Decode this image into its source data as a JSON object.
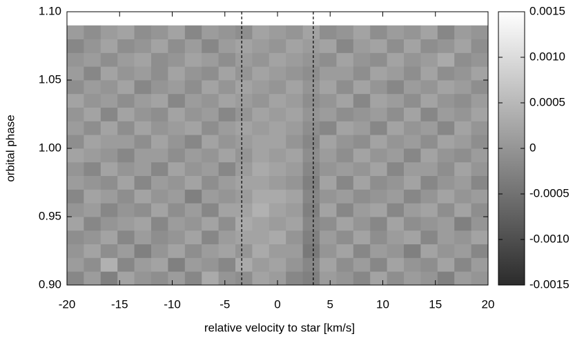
{
  "chart_data": {
    "type": "heatmap",
    "xlabel": "relative velocity to star [km/s]",
    "ylabel": "orbital phase",
    "xlim": [
      -20,
      20
    ],
    "xticks": [
      -20,
      -15,
      -10,
      -5,
      0,
      5,
      10,
      15,
      20
    ],
    "ylim": [
      0.9,
      1.1
    ],
    "yticks": [
      {
        "value": 0.9,
        "label": "0.90"
      },
      0.95,
      {
        "value": 1.0,
        "label": "1.00"
      },
      1.05,
      {
        "value": 1.1,
        "label": "1.10"
      }
    ],
    "zlim": [
      -0.0015,
      0.0015
    ],
    "zticks": [
      -0.0015,
      {
        "value": -0.001,
        "label": "-0.0010"
      },
      -0.0005,
      0,
      0.0005,
      {
        "value": 0.001,
        "label": "0.0010"
      },
      0.0015
    ],
    "colormap": [
      "#2b2b2b",
      "#ffffff"
    ],
    "vlines": [
      -3.4,
      3.4
    ],
    "xbins": [
      -20,
      -18.4,
      -16.8,
      -15.2,
      -13.6,
      -12,
      -10.4,
      -8.8,
      -7.2,
      -5.6,
      -4,
      -2.4,
      -0.8,
      0.8,
      2.4,
      4,
      5.6,
      7.2,
      8.8,
      10.4,
      12,
      13.6,
      15.2,
      16.8,
      18.4,
      20
    ],
    "ybins": [
      0.9,
      0.91,
      0.92,
      0.93,
      0.94,
      0.95,
      0.96,
      0.97,
      0.98,
      0.99,
      1.0,
      1.01,
      1.02,
      1.03,
      1.04,
      1.05,
      1.06,
      1.07,
      1.08,
      1.09
    ],
    "z": [
      [
        -0.0002,
        0.0001,
        -0.0003,
        0.0002,
        0,
        -0.0001,
        0.0001,
        -0.0002,
        0.0003,
        0,
        -0.0001,
        0.0002,
        0.0001,
        -0.0002,
        -0.0003,
        0.0001,
        0,
        -0.0002,
        0.0002,
        -0.0001,
        0.0001,
        0,
        -0.0003,
        0.0001,
        0
      ],
      [
        0.0001,
        -0.0001,
        0.0004,
        -0.0002,
        0.0001,
        0.0002,
        -0.0003,
        0.0001,
        0,
        -0.0002,
        0.0003,
        0.0001,
        0.0002,
        0,
        -0.0002,
        0.0002,
        -0.0001,
        0.0001,
        -0.0002,
        0.0002,
        0,
        -0.0001,
        0.0002,
        -0.0002,
        0.0001
      ],
      [
        0,
        0.0002,
        -0.0001,
        0.0001,
        -0.0003,
        0,
        0.0002,
        -0.0001,
        0.0001,
        0.0002,
        0,
        0.0003,
        0.0001,
        0.0001,
        -0.0004,
        0,
        0.0002,
        -0.0002,
        0.0001,
        0,
        -0.0003,
        0.0002,
        0,
        0.0001,
        -0.0002
      ],
      [
        -0.0001,
        0,
        0.0002,
        -0.0002,
        0.0001,
        -0.0001,
        0,
        0.0002,
        -0.0002,
        0.0001,
        0.0002,
        0.0002,
        0.0003,
        0,
        -0.0003,
        0.0001,
        -0.0001,
        0.0002,
        -0.0001,
        0.0001,
        0.0002,
        -0.0002,
        0.0001,
        0,
        0.0002
      ],
      [
        0.0002,
        -0.0002,
        0,
        0.0001,
        0.0002,
        -0.0002,
        0.0001,
        0,
        0.0002,
        -0.0001,
        0.0003,
        0.0002,
        0.0001,
        0.0002,
        -0.0002,
        -0.0001,
        0.0002,
        0,
        -0.0002,
        0.0002,
        -0.0001,
        0,
        0.0001,
        -0.0003,
        0
      ],
      [
        0,
        0.0001,
        -0.0002,
        0,
        -0.0001,
        0.0002,
        -0.0001,
        0.0001,
        -0.0002,
        0.0002,
        0.0002,
        0.0004,
        0.0002,
        0.0001,
        -0.0003,
        0.0002,
        -0.0002,
        0.0001,
        0.0002,
        -0.0002,
        0.0001,
        0.0002,
        -0.0001,
        0.0002,
        -0.0001
      ],
      [
        -0.0002,
        0.0002,
        0.0001,
        -0.0001,
        0.0002,
        0,
        0.0001,
        -0.0003,
        0.0001,
        0,
        0.0001,
        0.0003,
        0.0003,
        0.0002,
        -0.0002,
        0,
        0.0001,
        -0.0001,
        0,
        0.0001,
        -0.0002,
        0,
        0.0002,
        0,
        0.0001
      ],
      [
        0.0001,
        0,
        -0.0001,
        0.0002,
        -0.0002,
        0.0001,
        0,
        0.0002,
        -0.0001,
        0.0001,
        0.0002,
        0.0002,
        0.0001,
        0,
        -0.0003,
        0.0002,
        -0.0002,
        0.0002,
        -0.0001,
        0,
        0.0002,
        -0.0002,
        0,
        0.0001,
        -0.0002
      ],
      [
        0,
        -0.0002,
        0.0002,
        0,
        0.0001,
        -0.0002,
        0.0002,
        0,
        0.0001,
        -0.0002,
        0.0001,
        0.0003,
        0.0002,
        0.0001,
        -0.0002,
        0,
        0.0001,
        0,
        0.0002,
        -0.0002,
        0.0001,
        0.0001,
        -0.0001,
        0.0002,
        0
      ],
      [
        0.0002,
        0.0001,
        0,
        -0.0002,
        0.0001,
        0.0001,
        -0.0001,
        0.0001,
        0,
        0.0002,
        0,
        0.0002,
        0.0001,
        0.0002,
        -0.0001,
        0.0001,
        -0.0001,
        0.0002,
        0,
        0.0001,
        -0.0002,
        0.0002,
        0,
        -0.0001,
        0.0001
      ],
      [
        -0.0001,
        0.0002,
        0.0001,
        0.0001,
        -0.0001,
        0.0002,
        0,
        -0.0002,
        0.0002,
        0,
        0.0001,
        0.0002,
        0.0002,
        0,
        -0.0002,
        0.0002,
        0,
        -0.0001,
        0.0002,
        0,
        0.0001,
        -0.0001,
        0.0002,
        0.0001,
        -0.0001
      ],
      [
        0.0001,
        -0.0001,
        0.0002,
        -0.0001,
        0.0002,
        0,
        0.0001,
        0.0002,
        -0.0001,
        0.0001,
        0.0002,
        0.0001,
        0.0002,
        0.0001,
        -0.0001,
        -0.0002,
        0.0002,
        0.0001,
        -0.0002,
        0.0002,
        0,
        0.0001,
        -0.0002,
        0.0002,
        0
      ],
      [
        0,
        0.0002,
        -0.0002,
        0.0002,
        0,
        -0.0001,
        0.0002,
        0,
        0.0001,
        -0.0002,
        0,
        0.0002,
        0.0001,
        0.0002,
        0,
        0.0001,
        -0.0001,
        0,
        0.0001,
        -0.0001,
        0.0002,
        -0.0002,
        0.0001,
        0,
        0.0002
      ],
      [
        0.0002,
        0,
        0.0001,
        -0.0001,
        0.0001,
        0.0002,
        -0.0002,
        0.0001,
        0,
        0.0002,
        0.0001,
        0,
        0.0002,
        0.0001,
        -0.0001,
        0,
        0.0002,
        -0.0002,
        0.0002,
        0.0001,
        -0.0001,
        0.0002,
        0,
        -0.0001,
        0.0001
      ],
      [
        -0.0001,
        0.0001,
        0,
        0.0002,
        -0.0002,
        0,
        0.0001,
        -0.0001,
        0.0002,
        0,
        0.0002,
        0.0001,
        0,
        0.0002,
        0,
        0.0002,
        -0.0001,
        0.0002,
        0,
        -0.0002,
        0.0001,
        0,
        0.0002,
        0.0001,
        -0.0001
      ],
      [
        0.0001,
        -0.0002,
        0.0002,
        0,
        0.0001,
        -0.0001,
        0.0002,
        0,
        -0.0001,
        0.0002,
        0,
        0.0002,
        0.0001,
        0,
        -0.0001,
        0.0001,
        0.0001,
        -0.0001,
        0.0002,
        0.0001,
        -0.0001,
        0.0002,
        -0.0001,
        0,
        0.0002
      ],
      [
        0,
        0.0001,
        -0.0001,
        0.0001,
        0.0002,
        -0.0001,
        0,
        0.0002,
        0.0001,
        -0.0001,
        0.0001,
        0,
        0.0002,
        0.0001,
        0,
        -0.0001,
        0.0002,
        0,
        -0.0001,
        0.0002,
        0,
        0.0001,
        0.0003,
        -0.0001,
        0
      ],
      [
        -0.0002,
        0,
        0.0002,
        -0.0001,
        0,
        0.0002,
        -0.0001,
        0.0001,
        -0.0002,
        0.0001,
        0.0002,
        0.0001,
        0,
        0.0002,
        0.0001,
        0.0002,
        -0.0002,
        0.0001,
        0.0002,
        -0.0001,
        0.0002,
        -0.0001,
        0,
        0.0002,
        -0.0001
      ],
      [
        0.0001,
        -0.0001,
        0.0001,
        0.0002,
        -0.0001,
        0,
        0.0002,
        -0.0002,
        0.0001,
        0,
        -0.0001,
        0.0002,
        0.0001,
        0,
        0.0002,
        -0.0001,
        0,
        0.0002,
        -0.0001,
        0.0001,
        0,
        0.0002,
        -0.0002,
        0.0001,
        0
      ]
    ]
  }
}
